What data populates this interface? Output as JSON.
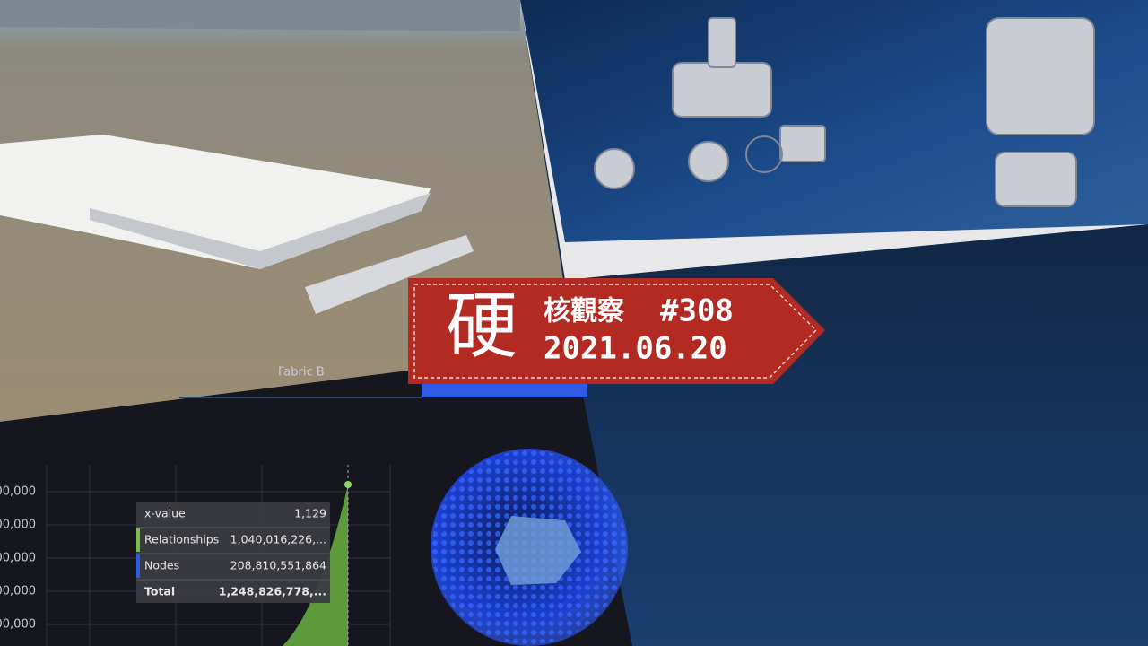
{
  "badge": {
    "glyph": "硬",
    "label": "核觀察",
    "issue": "#308",
    "date": "2021.06.20"
  },
  "dashboard": {
    "tab": "Fabric B",
    "axis_labels": [
      "00,000",
      "00,000",
      "00,000",
      "00,000",
      "00,000"
    ],
    "tooltip": {
      "rows": [
        [
          "x-value",
          "1,129"
        ],
        [
          "Relationships",
          "1,040,016,226,..."
        ],
        [
          "Nodes",
          "208,810,551,864"
        ],
        [
          "Total",
          "1,248,826,778,..."
        ]
      ]
    }
  }
}
